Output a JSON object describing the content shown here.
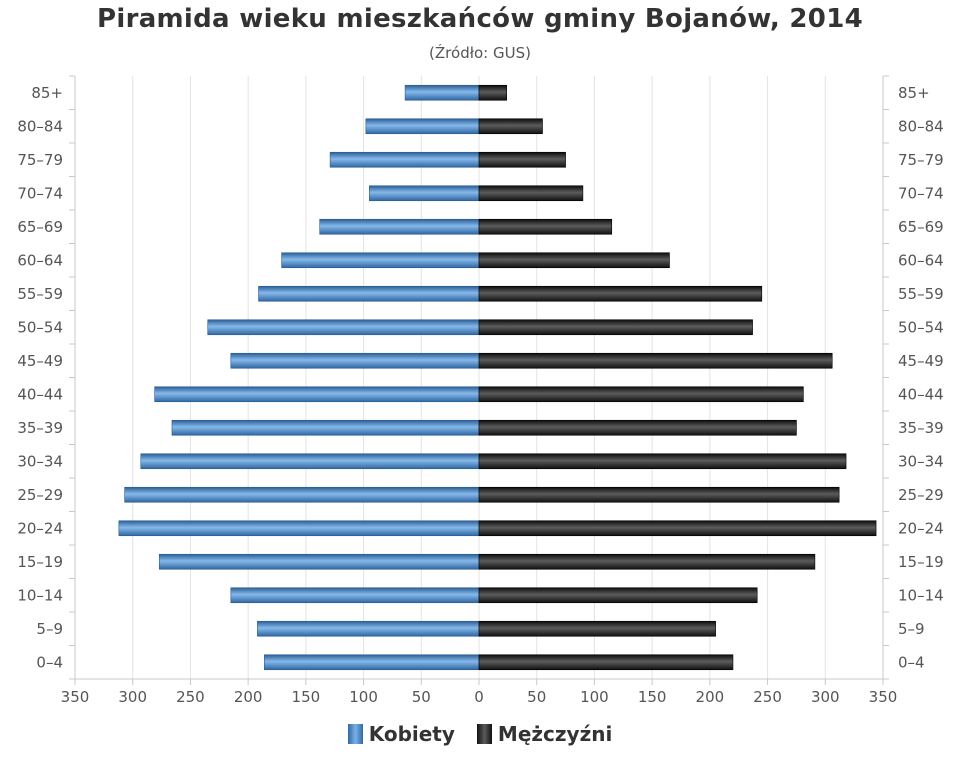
{
  "chart_data": {
    "type": "bar",
    "orientation": "horizontal-pyramid",
    "title": "Piramida wieku mieszkańców gminy Bojanów, 2014",
    "subtitle": "(Źródło: GUS)",
    "categories": [
      "85+",
      "80–84",
      "75–79",
      "70–74",
      "65–69",
      "60–64",
      "55–59",
      "50–54",
      "45–49",
      "40–44",
      "35–39",
      "30–34",
      "25–29",
      "20–24",
      "15–19",
      "10–14",
      "5–9",
      "0–4"
    ],
    "series": [
      {
        "name": "Kobiety",
        "color": "#3a78b8",
        "values": [
          64,
          98,
          129,
          95,
          138,
          171,
          191,
          235,
          215,
          281,
          266,
          293,
          307,
          312,
          277,
          215,
          192,
          186
        ]
      },
      {
        "name": "Mężczyźni",
        "color": "#1a1a1a",
        "values": [
          24,
          55,
          75,
          90,
          115,
          165,
          245,
          237,
          306,
          281,
          275,
          318,
          312,
          344,
          291,
          241,
          205,
          220
        ]
      }
    ],
    "x_ticks": [
      "350",
      "300",
      "250",
      "200",
      "150",
      "100",
      "50",
      "0",
      "50",
      "100",
      "150",
      "200",
      "250",
      "300",
      "350"
    ],
    "xlim": [
      -350,
      350
    ],
    "grid": true,
    "legend_position": "bottom"
  },
  "legend": {
    "women": "Kobiety",
    "men": "Mężczyźni"
  }
}
